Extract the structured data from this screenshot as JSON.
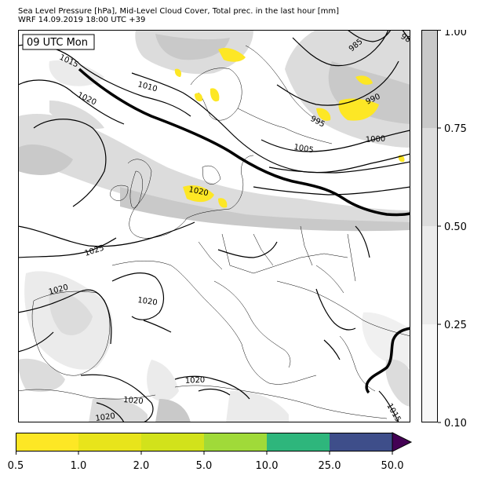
{
  "header": {
    "line1": "Sea Level Pressure [hPa], Mid-Level Cloud Cover, Total prec. in the last hour [mm]",
    "line2": "WRF 14.09.2019 18:00 UTC +39"
  },
  "map": {
    "valid_label": "09 UTC Mon",
    "region": "Europe",
    "isobar_interval_hpa": 5,
    "isobar_labels": [
      {
        "text": "1015",
        "id": "n-atlantic"
      },
      {
        "text": "1010",
        "id": "north-sea"
      },
      {
        "text": "1020",
        "id": "nw"
      },
      {
        "text": "985",
        "id": "ne"
      },
      {
        "text": "98",
        "id": "ne-edge"
      },
      {
        "text": "990",
        "id": "baltic"
      },
      {
        "text": "995",
        "id": "sweden"
      },
      {
        "text": "1000",
        "id": "finland"
      },
      {
        "text": "1005",
        "id": "denmark"
      },
      {
        "text": "1020",
        "id": "germany"
      },
      {
        "text": "1025",
        "id": "france"
      },
      {
        "text": "1020",
        "id": "biscay"
      },
      {
        "text": "1020",
        "id": "spain"
      },
      {
        "text": "1020",
        "id": "n-africa"
      },
      {
        "text": "1020",
        "id": "s-spain"
      },
      {
        "text": "1020",
        "id": "sw-corner"
      },
      {
        "text": "1015",
        "id": "se-corner"
      }
    ]
  },
  "cloud_colorbar": {
    "label": "Mid-Level Cloud Cover",
    "ticks": [
      "0.10",
      "0.25",
      "0.50",
      "0.75",
      "1.00"
    ],
    "colors": [
      "#f7f7f7",
      "#ebebeb",
      "#dcdcdc",
      "#c9c9c9"
    ]
  },
  "precip_colorbar": {
    "label": "Total prec. in the last hour [mm]",
    "ticks": [
      "0.5",
      "1.0",
      "2.0",
      "5.0",
      "10.0",
      "25.0",
      "50.0"
    ],
    "colors": [
      "#fde725",
      "#e8e41b",
      "#d2e21b",
      "#a0da39",
      "#2eb67c",
      "#3e4e8a"
    ],
    "extend_color": "#440154"
  },
  "chart_data": {
    "type": "heatmap",
    "title": "Sea Level Pressure [hPa], Mid-Level Cloud Cover, Total prec. in the last hour [mm]",
    "subtitle": "WRF 14.09.2019 18:00 UTC +39",
    "layers": [
      {
        "name": "Sea Level Pressure",
        "unit": "hPa",
        "style": "contours",
        "levels": [
          985,
          990,
          995,
          1000,
          1005,
          1010,
          1015,
          1020,
          1025
        ],
        "emphasized_level": 1015
      },
      {
        "name": "Mid-Level Cloud Cover",
        "style": "filled",
        "levels": [
          0.1,
          0.25,
          0.5,
          0.75,
          1.0
        ]
      },
      {
        "name": "Total prec. in the last hour",
        "unit": "mm",
        "style": "filled",
        "levels": [
          0.5,
          1.0,
          2.0,
          5.0,
          10.0,
          25.0,
          50.0
        ],
        "extend": "max"
      }
    ]
  }
}
